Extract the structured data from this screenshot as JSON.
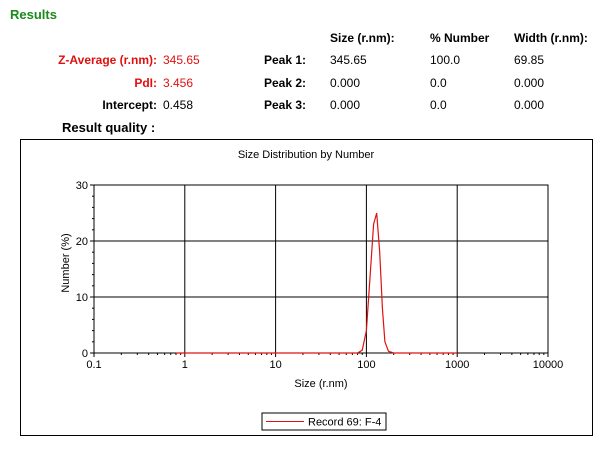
{
  "results": {
    "title": "Results",
    "columns": {
      "size": "Size (r.nm):",
      "number": "% Number",
      "width": "Width (r.nm):"
    },
    "summary": [
      {
        "label": "Z-Average (r.nm):",
        "value": "345.65",
        "color": "#e01010"
      },
      {
        "label": "PdI:",
        "value": "3.456",
        "color": "#e01010"
      },
      {
        "label": "Intercept:",
        "value": "0.458",
        "color": "#000000"
      }
    ],
    "peaks": [
      {
        "label": "Peak 1:",
        "size": "345.65",
        "number": "100.0",
        "width": "69.85"
      },
      {
        "label": "Peak 2:",
        "size": "0.000",
        "number": "0.0",
        "width": "0.000"
      },
      {
        "label": "Peak 3:",
        "size": "0.000",
        "number": "0.0",
        "width": "0.000"
      }
    ],
    "quality_label": "Result quality :"
  },
  "chart_data": {
    "type": "line",
    "title": "Size Distribution by Number",
    "xlabel": "Size (r.nm)",
    "ylabel": "Number (%)",
    "xscale": "log",
    "xlim": [
      0.1,
      10000
    ],
    "ylim": [
      0,
      30
    ],
    "xticks": [
      0.1,
      1,
      10,
      100,
      1000,
      10000
    ],
    "xtick_labels": [
      "0.1",
      "1",
      "10",
      "100",
      "1000",
      "10000"
    ],
    "yticks": [
      0,
      10,
      20,
      30
    ],
    "ytick_labels": [
      "0",
      "10",
      "20",
      "30"
    ],
    "grid": true,
    "legend_position": "bottom-center",
    "series": [
      {
        "name": "Record 69: F-4",
        "color": "#e01010",
        "x": [
          0.8,
          80,
          90,
          100,
          110,
          120,
          130,
          140,
          150,
          160,
          175,
          200,
          1000
        ],
        "y": [
          0,
          0,
          0.5,
          4,
          14,
          23,
          25,
          18,
          8,
          2,
          0.3,
          0,
          0
        ]
      }
    ]
  }
}
